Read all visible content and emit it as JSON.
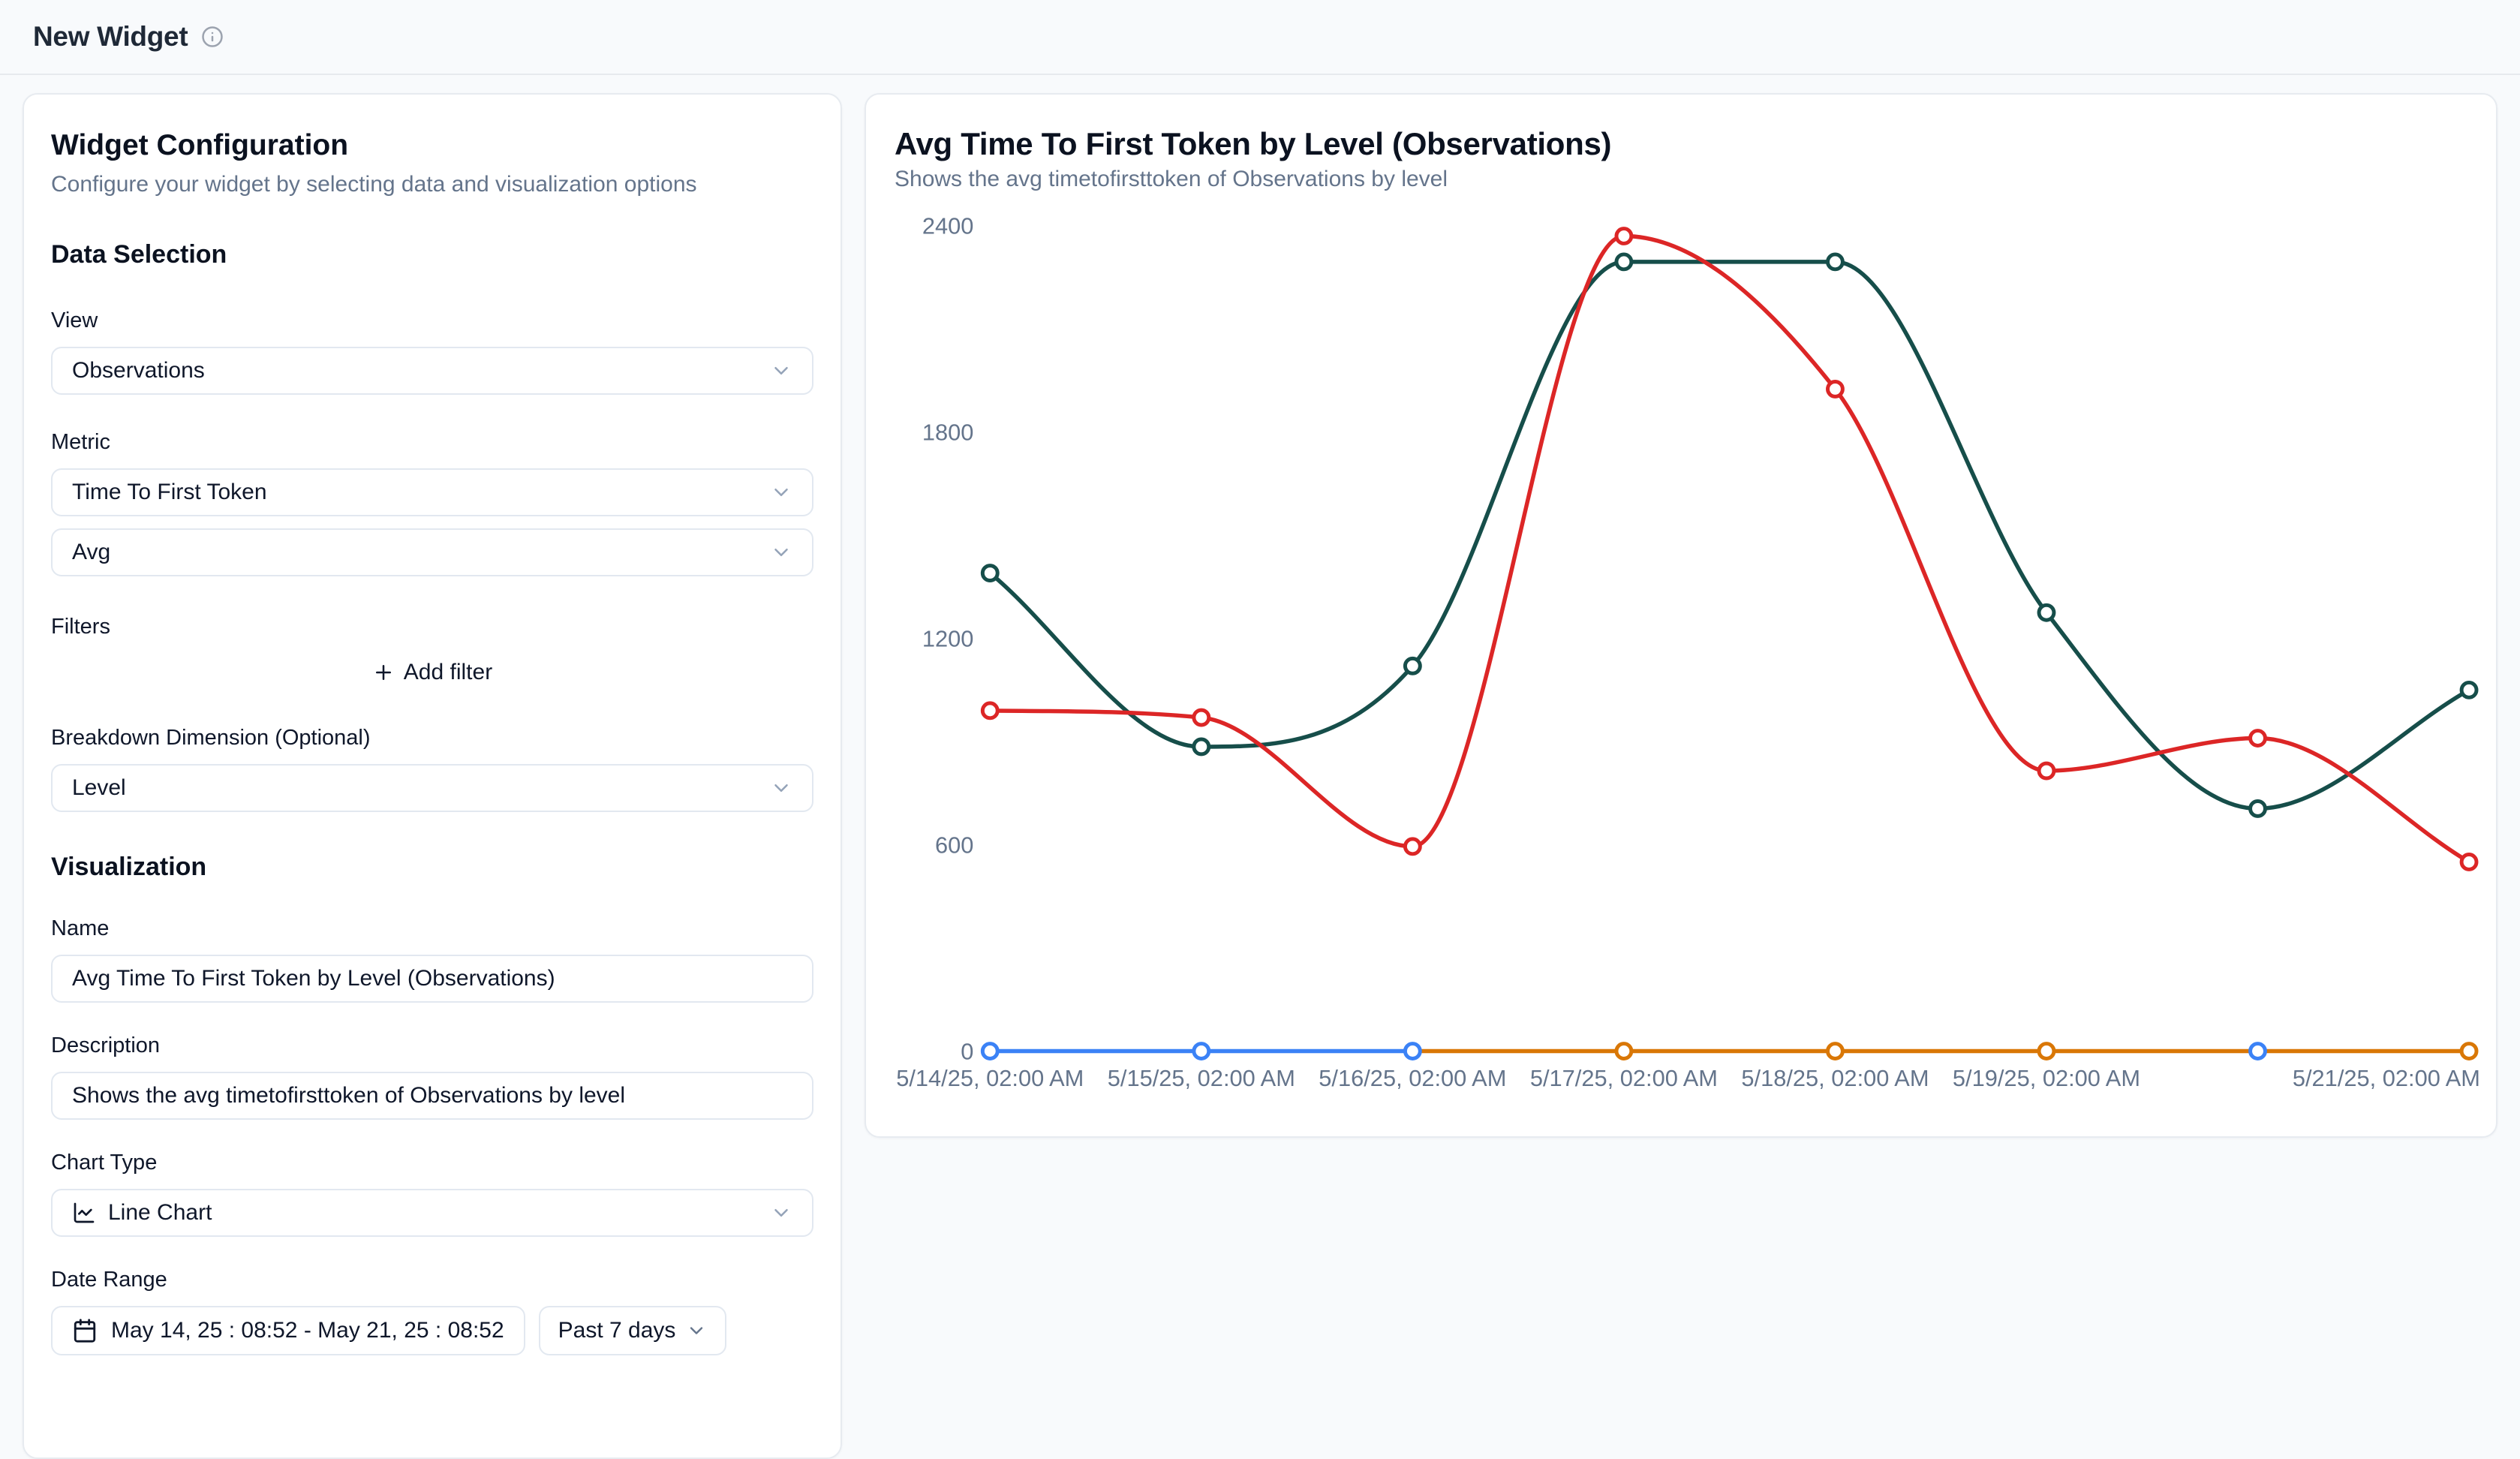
{
  "header": {
    "title": "New Widget"
  },
  "config": {
    "title": "Widget Configuration",
    "subtitle": "Configure your widget by selecting data and visualization options",
    "data_selection": {
      "heading": "Data Selection",
      "view_label": "View",
      "view_value": "Observations",
      "metric_label": "Metric",
      "metric_value": "Time To First Token",
      "aggregation_value": "Avg",
      "filters_label": "Filters",
      "add_filter_label": "Add filter",
      "breakdown_label": "Breakdown Dimension (Optional)",
      "breakdown_value": "Level"
    },
    "visualization": {
      "heading": "Visualization",
      "name_label": "Name",
      "name_value": "Avg Time To First Token by Level (Observations)",
      "description_label": "Description",
      "description_value": "Shows the avg timetofirsttoken of Observations by level",
      "chart_type_label": "Chart Type",
      "chart_type_value": "Line Chart",
      "date_range_label": "Date Range",
      "date_range_value": "May 14, 25 : 08:52 - May 21, 25 : 08:52",
      "date_preset_value": "Past 7 days"
    }
  },
  "chart_panel": {
    "title": "Avg Time To First Token by Level (Observations)",
    "subtitle": "Shows the avg timetofirsttoken of Observations by level"
  },
  "icons": [
    "info-icon",
    "chevron-down-icon",
    "plus-icon",
    "line-chart-icon",
    "calendar-icon"
  ],
  "chart_data": {
    "type": "line",
    "title": "Avg Time To First Token by Level (Observations)",
    "subtitle": "Shows the avg timetofirsttoken of Observations by level",
    "grid": false,
    "legend": "none",
    "ylim": [
      0,
      2520
    ],
    "y_ticks": [
      0,
      600,
      1200,
      1800,
      2400
    ],
    "x_tick_labels": [
      "5/14/25, 02:00 AM",
      "5/15/25, 02:00 AM",
      "5/16/25, 02:00 AM",
      "5/17/25, 02:00 AM",
      "5/18/25, 02:00 AM",
      "5/19/25, 02:00 AM",
      "",
      "5/21/25, 02:00 AM"
    ],
    "series": [
      {
        "id": "series-teal",
        "color": "#164e4a",
        "line": [
          [
            0,
            1390
          ],
          [
            1,
            885
          ],
          [
            2,
            1120
          ],
          [
            3,
            2295
          ],
          [
            4,
            2295
          ],
          [
            5,
            1275
          ],
          [
            6,
            705
          ],
          [
            7,
            1050
          ]
        ],
        "markers": "all"
      },
      {
        "id": "series-red",
        "color": "#dc2626",
        "line": [
          [
            0,
            990
          ],
          [
            1,
            970
          ],
          [
            2,
            595
          ],
          [
            3,
            2370
          ],
          [
            4,
            1925
          ],
          [
            5,
            815
          ],
          [
            6,
            910
          ],
          [
            7,
            550
          ]
        ],
        "markers": "all"
      },
      {
        "id": "series-amber",
        "color": "#d97706",
        "line": [
          [
            2,
            0
          ],
          [
            3,
            0
          ],
          [
            4,
            0
          ],
          [
            5,
            0
          ],
          [
            6,
            0
          ],
          [
            7,
            0
          ]
        ],
        "markers": [
          [
            3,
            0
          ],
          [
            4,
            0
          ],
          [
            5,
            0
          ],
          [
            7,
            0
          ]
        ]
      },
      {
        "id": "series-blue",
        "color": "#3b82f6",
        "line": [
          [
            0,
            0
          ],
          [
            1,
            0
          ],
          [
            2,
            0
          ]
        ],
        "markers": [
          [
            0,
            0
          ],
          [
            1,
            0
          ],
          [
            2,
            0
          ],
          [
            6,
            0
          ]
        ]
      }
    ]
  }
}
